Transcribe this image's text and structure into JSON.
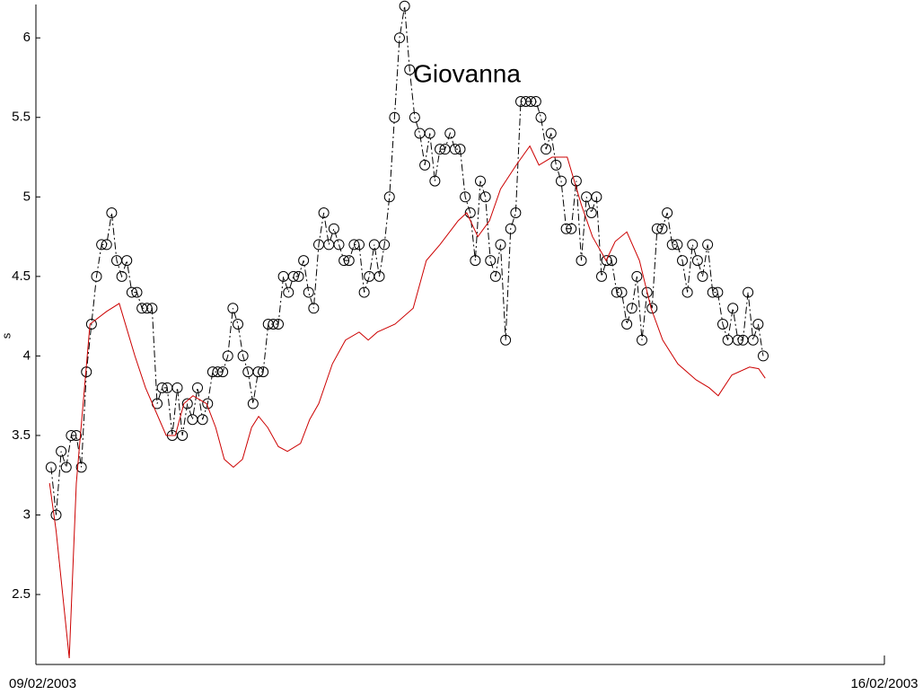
{
  "chart_data": {
    "type": "line",
    "title": "Giovanna",
    "ylabel": "s",
    "xlim": [
      0,
      168
    ],
    "xticks": [
      {
        "value": 0,
        "label": "09/02/2003"
      },
      {
        "value": 168,
        "label": "16/02/2003"
      }
    ],
    "ylim": [
      2.06,
      6.21
    ],
    "yticks": [
      2.5,
      3,
      3.5,
      4,
      4.5,
      5,
      5.5,
      6
    ],
    "series": [
      {
        "color": "#000000",
        "line": "dashdot",
        "marker": "circle",
        "x": [
          3,
          4,
          5,
          6,
          7,
          8,
          9,
          10,
          11,
          12,
          13,
          14,
          15,
          16,
          17,
          18,
          19,
          20,
          21,
          22,
          23,
          24,
          25,
          26,
          27,
          28,
          29,
          30,
          31,
          32,
          33,
          34,
          35,
          36,
          37,
          38,
          39,
          40,
          41,
          42,
          43,
          44,
          45,
          46,
          47,
          48,
          49,
          50,
          51,
          52,
          53,
          54,
          55,
          56,
          57,
          58,
          59,
          60,
          61,
          62,
          63,
          64,
          65,
          66,
          67,
          68,
          69,
          70,
          71,
          72,
          73,
          74,
          75,
          76,
          77,
          78,
          79,
          80,
          81,
          82,
          83,
          84,
          85,
          86,
          87,
          88,
          89,
          90,
          91,
          92,
          93,
          94,
          95,
          96,
          97,
          98,
          99,
          100,
          101,
          102,
          103,
          104,
          105,
          106,
          107,
          108,
          109,
          110,
          111,
          112,
          113,
          114,
          115,
          116,
          117,
          118,
          119,
          120,
          121,
          122,
          123,
          124,
          125,
          126,
          127,
          128,
          129,
          130,
          131,
          132,
          133,
          134,
          135,
          136,
          137,
          138,
          139,
          140,
          141,
          142,
          143,
          144
        ],
        "values": [
          3.3,
          3.0,
          3.4,
          3.3,
          3.5,
          3.5,
          3.3,
          3.9,
          4.2,
          4.5,
          4.7,
          4.7,
          4.9,
          4.6,
          4.5,
          4.6,
          4.4,
          4.4,
          4.3,
          4.3,
          4.3,
          3.7,
          3.8,
          3.8,
          3.5,
          3.8,
          3.5,
          3.7,
          3.6,
          3.8,
          3.6,
          3.7,
          3.9,
          3.9,
          3.9,
          4.0,
          4.3,
          4.2,
          4.0,
          3.9,
          3.7,
          3.9,
          3.9,
          4.2,
          4.2,
          4.2,
          4.5,
          4.4,
          4.5,
          4.5,
          4.6,
          4.4,
          4.3,
          4.7,
          4.9,
          4.7,
          4.8,
          4.7,
          4.6,
          4.6,
          4.7,
          4.7,
          4.4,
          4.5,
          4.7,
          4.5,
          4.7,
          5.0,
          5.5,
          6.0,
          6.2,
          5.8,
          5.5,
          5.4,
          5.2,
          5.4,
          5.1,
          5.3,
          5.3,
          5.4,
          5.3,
          5.3,
          5.0,
          4.9,
          4.6,
          5.1,
          5.0,
          4.6,
          4.5,
          4.7,
          4.1,
          4.8,
          4.9,
          5.6,
          5.6,
          5.6,
          5.6,
          5.5,
          5.3,
          5.4,
          5.2,
          5.1,
          4.8,
          4.8,
          5.1,
          4.6,
          5.0,
          4.9,
          5.0,
          4.5,
          4.6,
          4.6,
          4.4,
          4.4,
          4.2,
          4.3,
          4.5,
          4.1,
          4.4,
          4.3,
          4.8,
          4.8,
          4.9,
          4.7,
          4.7,
          4.6,
          4.4,
          4.7,
          4.6,
          4.5,
          4.7,
          4.4,
          4.4,
          4.2,
          4.1,
          4.3,
          4.1,
          4.1,
          4.4,
          4.1,
          4.2,
          4.0
        ]
      },
      {
        "color": "#cc0000",
        "line": "solid",
        "x": [
          2.7,
          4,
          6.6,
          8,
          10.7,
          14,
          16.5,
          19.6,
          21.7,
          25.8,
          27.6,
          29.3,
          31.1,
          33.8,
          35.6,
          37.3,
          39.1,
          40.9,
          42.7,
          44.1,
          45.9,
          48,
          49.8,
          52.4,
          54.2,
          56,
          58.7,
          61.3,
          64,
          65.8,
          67.6,
          71.1,
          74.7,
          77.3,
          80,
          83.6,
          85.3,
          87.5,
          89.8,
          92,
          95.1,
          97.8,
          99.6,
          102.2,
          105.2,
          108,
          110.2,
          112.9,
          114.7,
          117,
          119.5,
          121.8,
          124.1,
          127.1,
          130.7,
          133.3,
          135.1,
          137.8,
          141.3,
          143.1,
          144.4
        ],
        "values": [
          3.2,
          2.9,
          2.1,
          3.2,
          4.2,
          4.28,
          4.33,
          4.0,
          3.8,
          3.5,
          3.5,
          3.7,
          3.75,
          3.7,
          3.55,
          3.35,
          3.3,
          3.35,
          3.55,
          3.62,
          3.55,
          3.43,
          3.4,
          3.45,
          3.6,
          3.7,
          3.95,
          4.1,
          4.15,
          4.1,
          4.15,
          4.2,
          4.3,
          4.6,
          4.7,
          4.85,
          4.9,
          4.75,
          4.85,
          5.05,
          5.2,
          5.32,
          5.2,
          5.25,
          5.25,
          4.95,
          4.75,
          4.6,
          4.72,
          4.78,
          4.6,
          4.3,
          4.1,
          3.95,
          3.85,
          3.8,
          3.75,
          3.88,
          3.93,
          3.92,
          3.86
        ]
      }
    ]
  }
}
